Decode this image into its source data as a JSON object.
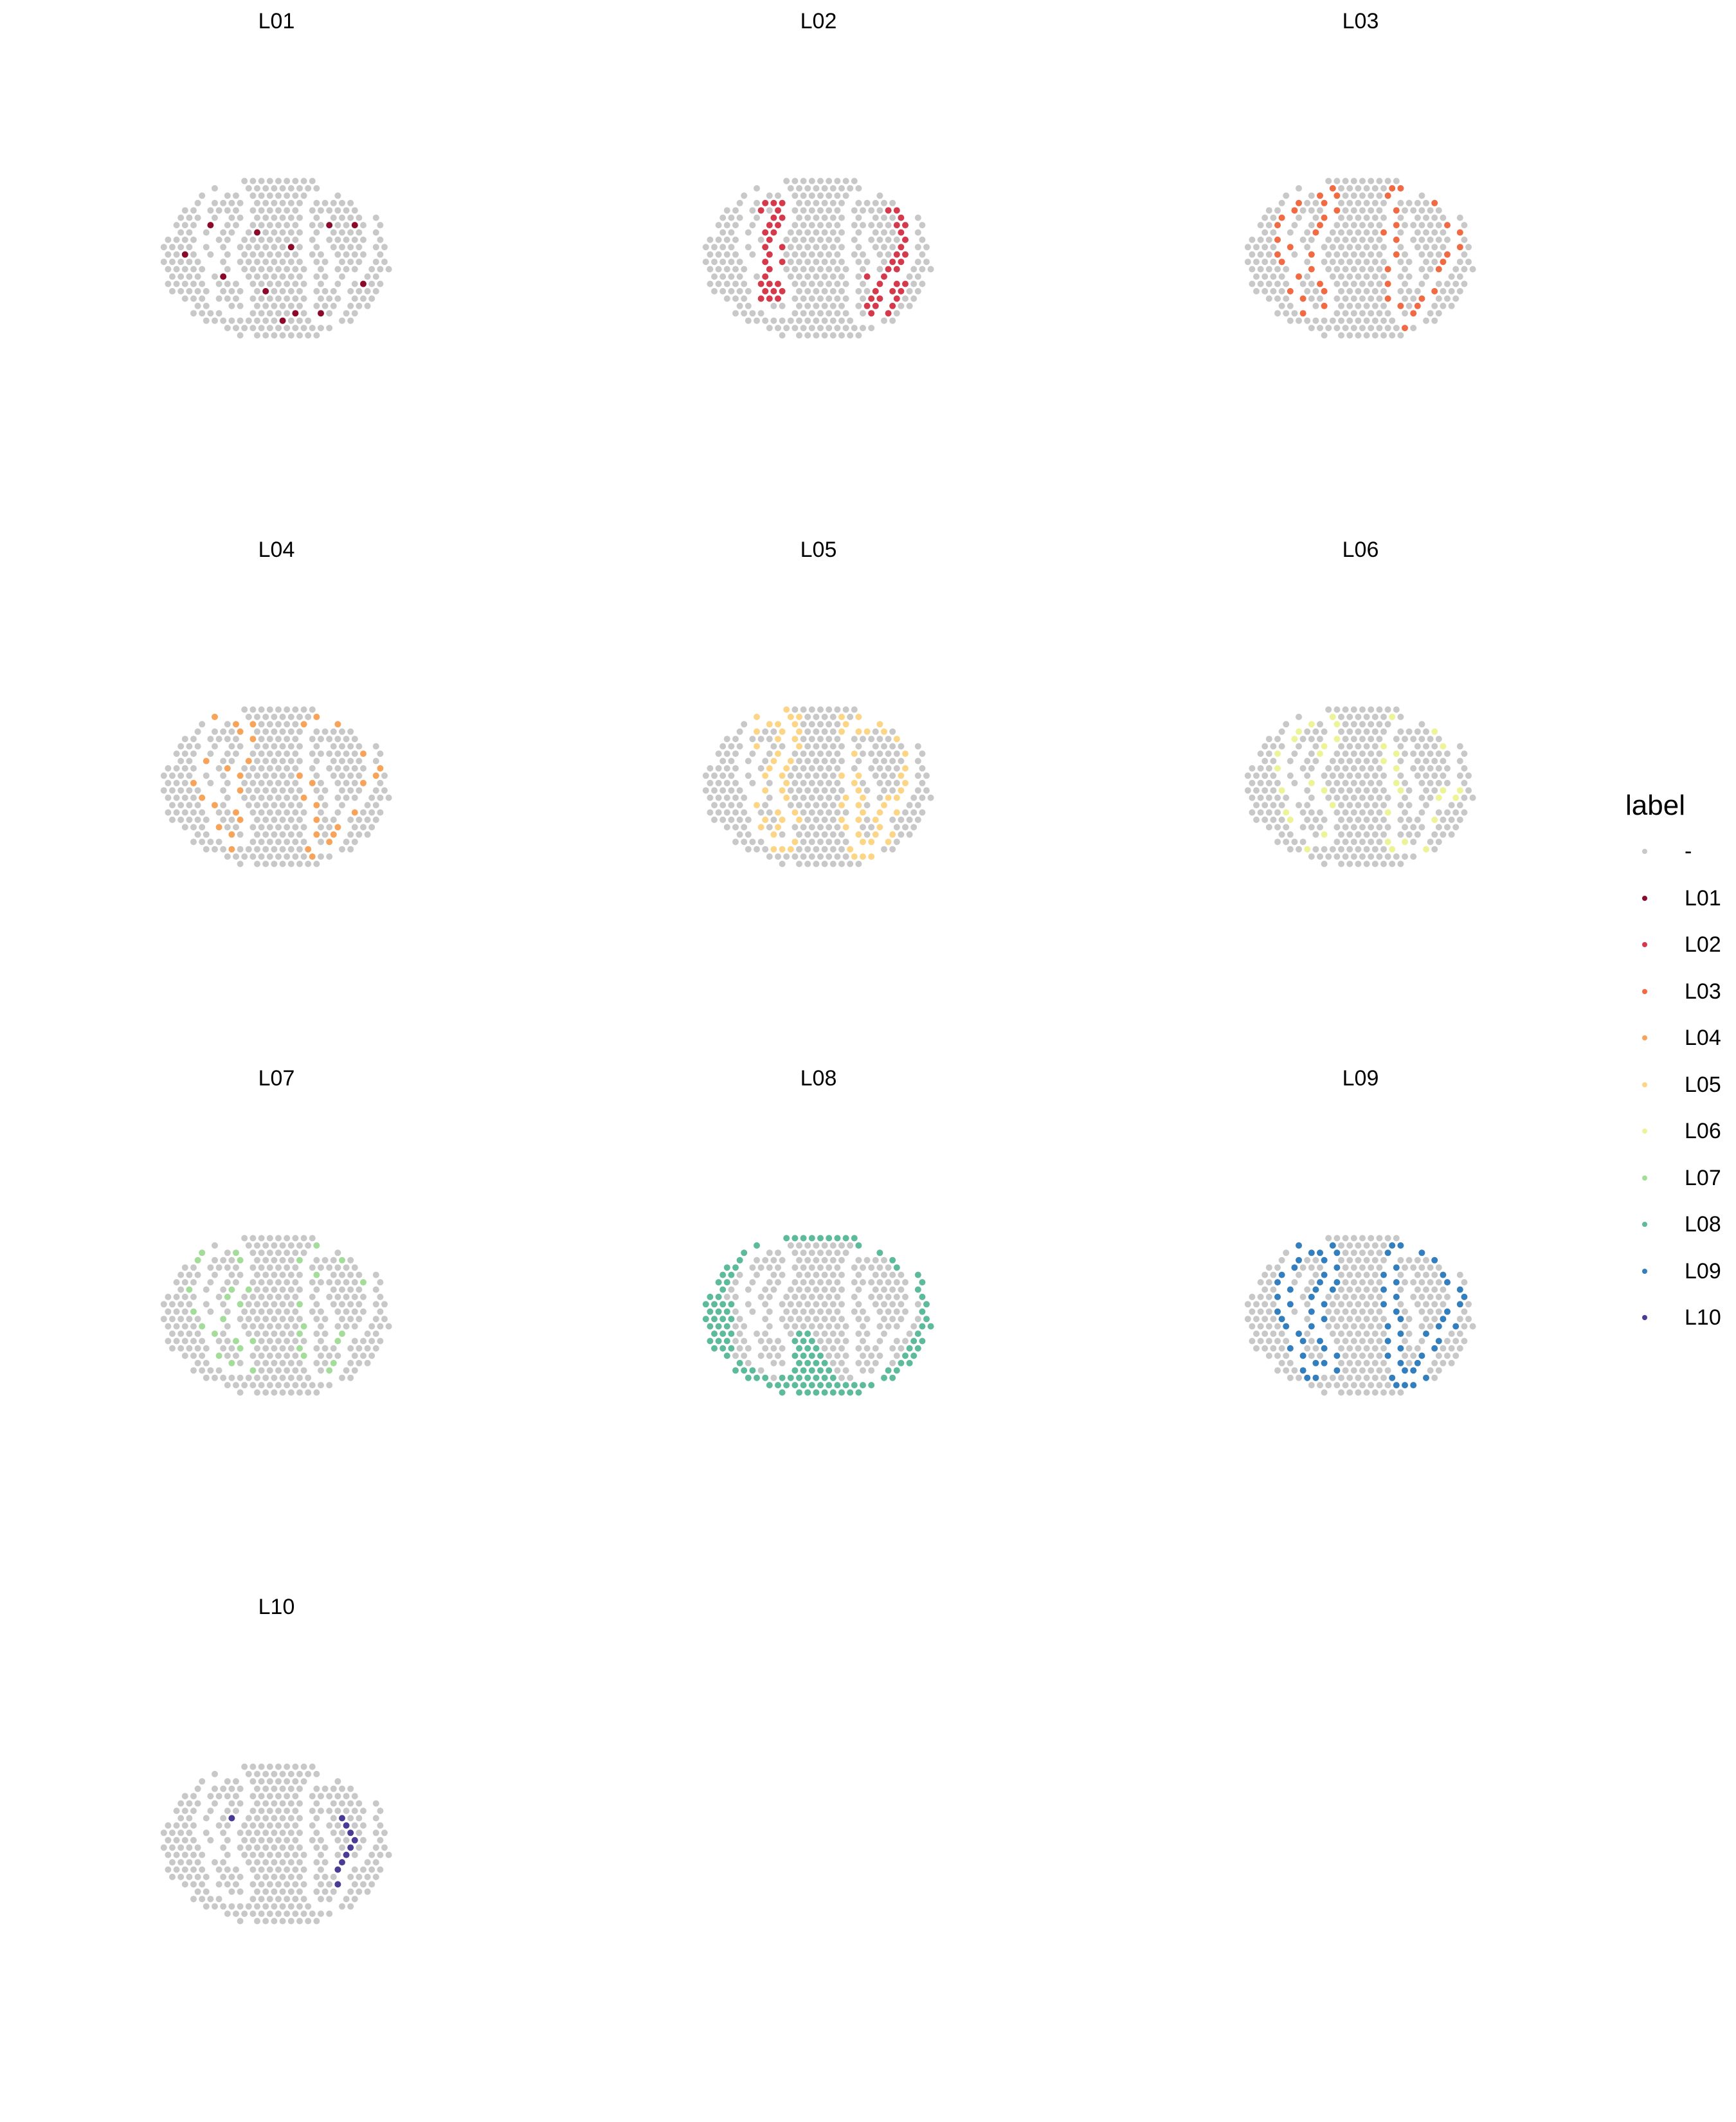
{
  "chart_data": {
    "type": "scatter",
    "subtype": "faceted spatial spot map",
    "facets": [
      "L01",
      "L02",
      "L03",
      "L04",
      "L05",
      "L06",
      "L07",
      "L08",
      "L09",
      "L10"
    ],
    "facet_layout": {
      "columns": 3,
      "rows": 4
    },
    "background_color": "#c8c8c8",
    "boundary_color": "#ffffff",
    "grid": false,
    "axes": false,
    "legend": {
      "title": "label",
      "position": "right",
      "entries": [
        {
          "label": "-",
          "color": "#c8c8c8"
        },
        {
          "label": "L01",
          "color": "#8b0a2a"
        },
        {
          "label": "L02",
          "color": "#d43a4c"
        },
        {
          "label": "L03",
          "color": "#f06a43"
        },
        {
          "label": "L04",
          "color": "#f8a35a"
        },
        {
          "label": "L05",
          "color": "#fdd586"
        },
        {
          "label": "L06",
          "color": "#ecf497"
        },
        {
          "label": "L07",
          "color": "#a4dc9a"
        },
        {
          "label": "L08",
          "color": "#5dbb9b"
        },
        {
          "label": "L09",
          "color": "#337ebc"
        },
        {
          "label": "L10",
          "color": "#4c3b95"
        }
      ]
    }
  }
}
